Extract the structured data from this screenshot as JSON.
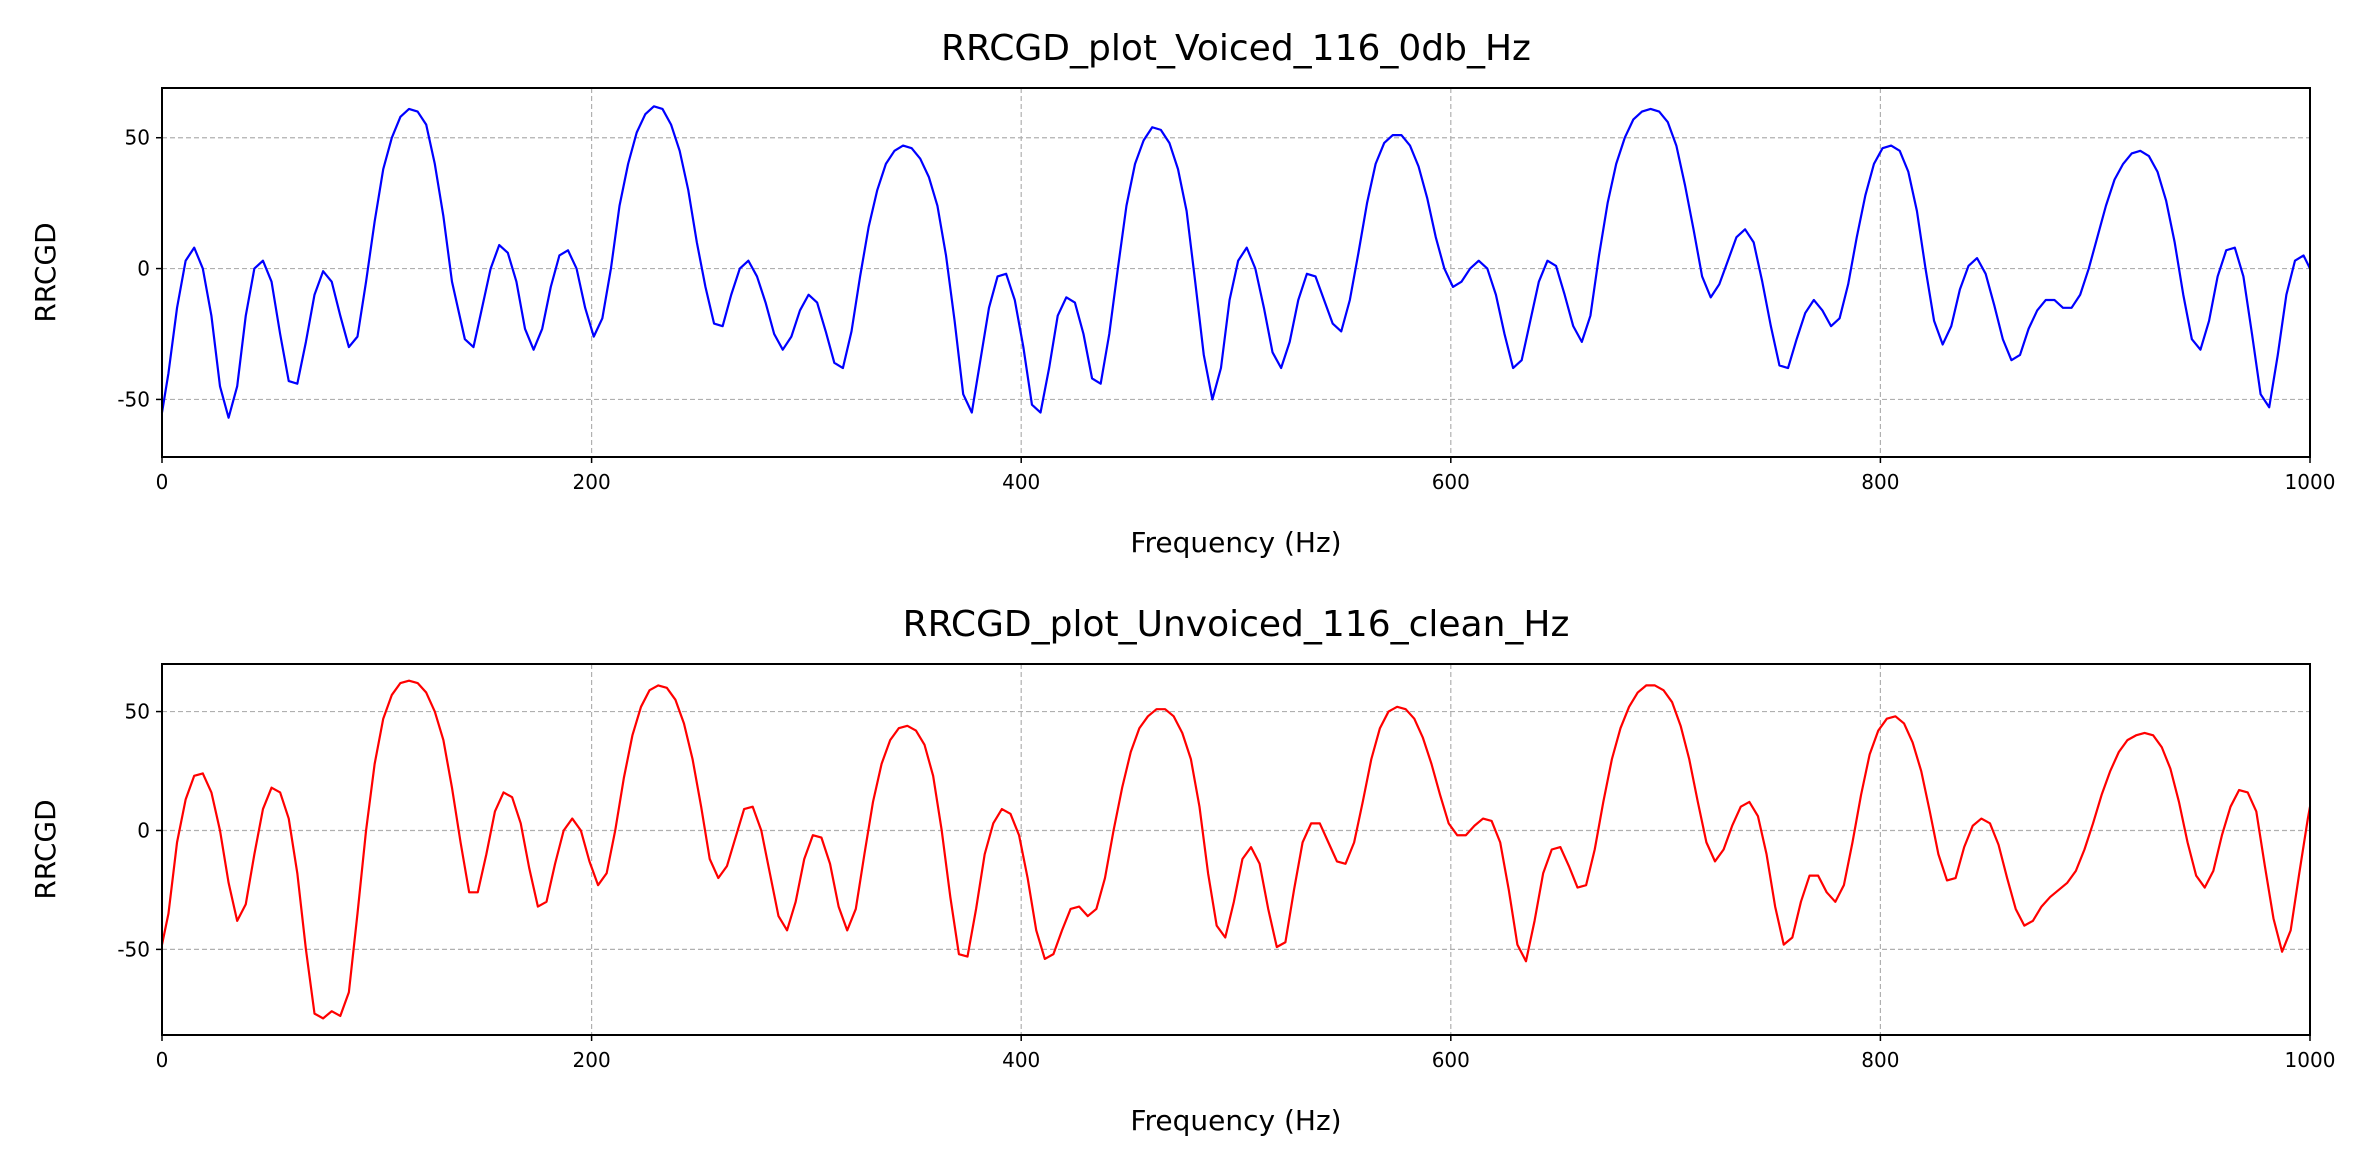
{
  "chart_data": [
    {
      "type": "line",
      "title": "RRCGD_plot_Voiced_116_0db_Hz",
      "xlabel": "Frequency (Hz)",
      "ylabel": "RRCGD",
      "color": "#0000ff",
      "grid": true,
      "xlim": [
        0,
        1000
      ],
      "ylim": [
        -72,
        69
      ],
      "xticks": [
        0,
        200,
        400,
        600,
        800,
        1000
      ],
      "yticks": [
        -50,
        0,
        50
      ],
      "x": [
        0,
        3,
        7,
        11,
        15,
        19,
        23,
        27,
        31,
        35,
        39,
        43,
        47,
        51,
        55,
        59,
        63,
        67,
        71,
        75,
        79,
        83,
        87,
        91,
        95,
        99,
        103,
        107,
        111,
        115,
        119,
        123,
        127,
        131,
        135,
        141,
        145,
        149,
        153,
        157,
        161,
        165,
        169,
        173,
        177,
        181,
        185,
        189,
        193,
        197,
        201,
        205,
        209,
        213,
        217,
        221,
        225,
        229,
        233,
        237,
        241,
        245,
        249,
        253,
        257,
        261,
        265,
        269,
        273,
        277,
        281,
        285,
        289,
        293,
        297,
        301,
        305,
        309,
        313,
        317,
        321,
        325,
        329,
        333,
        337,
        341,
        345,
        349,
        353,
        357,
        361,
        365,
        369,
        373,
        377,
        381,
        385,
        389,
        393,
        397,
        401,
        405,
        409,
        413,
        417,
        421,
        425,
        429,
        433,
        437,
        441,
        445,
        449,
        453,
        457,
        461,
        465,
        469,
        473,
        477,
        481,
        485,
        489,
        493,
        497,
        501,
        505,
        509,
        513,
        517,
        521,
        525,
        529,
        533,
        537,
        541,
        545,
        549,
        553,
        557,
        561,
        565,
        569,
        573,
        577,
        581,
        585,
        589,
        593,
        597,
        601,
        605,
        609,
        613,
        617,
        621,
        625,
        629,
        633,
        637,
        641,
        645,
        649,
        653,
        657,
        661,
        665,
        669,
        673,
        677,
        681,
        685,
        689,
        693,
        697,
        701,
        705,
        709,
        713,
        717,
        721,
        725,
        729,
        733,
        737,
        741,
        745,
        749,
        753,
        757,
        761,
        765,
        769,
        773,
        777,
        781,
        785,
        789,
        793,
        797,
        801,
        805,
        809,
        813,
        817,
        821,
        825,
        829,
        833,
        837,
        841,
        845,
        849,
        853,
        857,
        861,
        865,
        869,
        873,
        877,
        881,
        885,
        889,
        893,
        897,
        901,
        905,
        909,
        913,
        917,
        921,
        925,
        929,
        933,
        937,
        941,
        945,
        949,
        953,
        957,
        961,
        965,
        969,
        973,
        977,
        981,
        985,
        989,
        993,
        997,
        1000
      ],
      "values": [
        -55,
        -40,
        -15,
        3,
        8,
        0,
        -18,
        -45,
        -57,
        -45,
        -18,
        0,
        3,
        -5,
        -25,
        -43,
        -44,
        -28,
        -10,
        -1,
        -5,
        -18,
        -30,
        -26,
        -5,
        18,
        38,
        50,
        58,
        61,
        60,
        55,
        40,
        20,
        -5,
        -27,
        -30,
        -15,
        0,
        9,
        6,
        -5,
        -23,
        -31,
        -23,
        -7,
        5,
        7,
        0,
        -15,
        -26,
        -19,
        0,
        24,
        40,
        52,
        59,
        62,
        61,
        55,
        45,
        30,
        10,
        -7,
        -21,
        -22,
        -10,
        0,
        3,
        -3,
        -13,
        -25,
        -31,
        -26,
        -16,
        -10,
        -13,
        -24,
        -36,
        -38,
        -24,
        -3,
        16,
        30,
        40,
        45,
        47,
        46,
        42,
        35,
        24,
        5,
        -20,
        -48,
        -55,
        -35,
        -15,
        -3,
        -2,
        -12,
        -30,
        -52,
        -55,
        -38,
        -18,
        -11,
        -13,
        -25,
        -42,
        -44,
        -25,
        0,
        24,
        40,
        49,
        54,
        53,
        48,
        38,
        22,
        -5,
        -33,
        -50,
        -38,
        -12,
        3,
        8,
        0,
        -15,
        -32,
        -38,
        -28,
        -12,
        -2,
        -3,
        -12,
        -21,
        -24,
        -12,
        6,
        25,
        40,
        48,
        51,
        51,
        47,
        39,
        27,
        12,
        0,
        -7,
        -5,
        0,
        3,
        0,
        -10,
        -25,
        -38,
        -35,
        -20,
        -5,
        3,
        1,
        -10,
        -22,
        -28,
        -18,
        5,
        25,
        40,
        50,
        57,
        60,
        61,
        60,
        56,
        47,
        32,
        15,
        -3,
        -11,
        -6,
        3,
        12,
        15,
        10,
        -5,
        -22,
        -37,
        -38,
        -27,
        -17,
        -12,
        -16,
        -22,
        -19,
        -6,
        12,
        28,
        40,
        46,
        47,
        45,
        37,
        22,
        0,
        -20,
        -29,
        -22,
        -8,
        1,
        4,
        -2,
        -14,
        -27,
        -35,
        -33,
        -23,
        -16,
        -12,
        -12,
        -15,
        -15,
        -10,
        0,
        12,
        24,
        34,
        40,
        44,
        45,
        43,
        37,
        26,
        10,
        -10,
        -27,
        -31,
        -20,
        -3,
        7,
        8,
        -3,
        -25,
        -48,
        -53,
        -33,
        -10,
        3,
        5,
        0
      ]
    },
    {
      "type": "line",
      "title": "RRCGD_plot_Unvoiced_116_clean_Hz",
      "xlabel": "Frequency (Hz)",
      "ylabel": "RRCGD",
      "color": "#ff0000",
      "grid": true,
      "xlim": [
        0,
        1000
      ],
      "ylim": [
        -86,
        70
      ],
      "xticks": [
        0,
        200,
        400,
        600,
        800,
        1000
      ],
      "yticks": [
        -50,
        0,
        50
      ],
      "x": [
        0,
        3,
        7,
        11,
        15,
        19,
        23,
        27,
        31,
        35,
        39,
        43,
        47,
        51,
        55,
        59,
        63,
        67,
        71,
        75,
        79,
        83,
        87,
        91,
        95,
        99,
        103,
        107,
        111,
        115,
        119,
        123,
        127,
        131,
        135,
        139,
        143,
        147,
        151,
        155,
        159,
        163,
        167,
        171,
        175,
        179,
        183,
        187,
        191,
        195,
        199,
        203,
        207,
        211,
        215,
        219,
        223,
        227,
        231,
        235,
        239,
        243,
        247,
        251,
        255,
        259,
        263,
        267,
        271,
        275,
        279,
        283,
        287,
        291,
        295,
        299,
        303,
        307,
        311,
        315,
        319,
        323,
        327,
        331,
        335,
        339,
        343,
        347,
        351,
        355,
        359,
        363,
        367,
        371,
        375,
        379,
        383,
        387,
        391,
        395,
        399,
        403,
        407,
        411,
        415,
        419,
        423,
        427,
        431,
        435,
        439,
        443,
        447,
        451,
        455,
        459,
        463,
        467,
        471,
        475,
        479,
        483,
        487,
        491,
        495,
        499,
        503,
        507,
        511,
        515,
        519,
        523,
        527,
        531,
        535,
        539,
        543,
        547,
        551,
        555,
        559,
        563,
        567,
        571,
        575,
        579,
        583,
        587,
        591,
        595,
        599,
        603,
        607,
        611,
        615,
        619,
        623,
        627,
        631,
        635,
        639,
        643,
        647,
        651,
        655,
        659,
        663,
        667,
        671,
        675,
        679,
        683,
        687,
        691,
        695,
        699,
        703,
        707,
        711,
        715,
        719,
        723,
        727,
        731,
        735,
        739,
        743,
        747,
        751,
        755,
        759,
        763,
        767,
        771,
        775,
        779,
        783,
        787,
        791,
        795,
        799,
        803,
        807,
        811,
        815,
        819,
        823,
        827,
        831,
        835,
        839,
        843,
        847,
        851,
        855,
        859,
        863,
        867,
        871,
        875,
        879,
        883,
        887,
        891,
        895,
        899,
        903,
        907,
        911,
        915,
        919,
        923,
        927,
        931,
        935,
        939,
        943,
        947,
        951,
        955,
        959,
        963,
        967,
        971,
        975,
        979,
        983,
        987,
        991,
        995,
        999,
        1000
      ],
      "values": [
        -48,
        -35,
        -5,
        13,
        23,
        24,
        16,
        0,
        -22,
        -38,
        -31,
        -10,
        9,
        18,
        16,
        5,
        -18,
        -50,
        -77,
        -79,
        -76,
        -78,
        -68,
        -35,
        0,
        28,
        47,
        57,
        62,
        63,
        62,
        58,
        50,
        38,
        18,
        -5,
        -26,
        -26,
        -10,
        8,
        16,
        14,
        3,
        -16,
        -32,
        -30,
        -14,
        0,
        5,
        0,
        -13,
        -23,
        -18,
        0,
        22,
        40,
        52,
        59,
        61,
        60,
        55,
        45,
        30,
        10,
        -12,
        -20,
        -15,
        -3,
        9,
        10,
        0,
        -18,
        -36,
        -42,
        -30,
        -12,
        -2,
        -3,
        -14,
        -32,
        -42,
        -33,
        -10,
        12,
        28,
        38,
        43,
        44,
        42,
        36,
        23,
        0,
        -28,
        -52,
        -53,
        -33,
        -10,
        3,
        9,
        7,
        -2,
        -20,
        -42,
        -54,
        -52,
        -42,
        -33,
        -32,
        -36,
        -33,
        -20,
        0,
        18,
        33,
        43,
        48,
        51,
        51,
        48,
        41,
        30,
        10,
        -18,
        -40,
        -45,
        -30,
        -12,
        -7,
        -14,
        -33,
        -49,
        -47,
        -25,
        -5,
        3,
        3,
        -5,
        -13,
        -14,
        -5,
        12,
        30,
        43,
        50,
        52,
        51,
        47,
        39,
        28,
        15,
        3,
        -2,
        -2,
        2,
        5,
        4,
        -5,
        -25,
        -48,
        -55,
        -38,
        -18,
        -8,
        -7,
        -15,
        -24,
        -23,
        -8,
        12,
        30,
        43,
        52,
        58,
        61,
        61,
        59,
        54,
        44,
        30,
        12,
        -5,
        -13,
        -8,
        2,
        10,
        12,
        6,
        -10,
        -32,
        -48,
        -45,
        -30,
        -19,
        -19,
        -26,
        -30,
        -23,
        -5,
        15,
        32,
        42,
        47,
        48,
        45,
        37,
        25,
        8,
        -10,
        -21,
        -20,
        -7,
        2,
        5,
        3,
        -6,
        -20,
        -33,
        -40,
        -38,
        -32,
        -28,
        -25,
        -22,
        -17,
        -8,
        3,
        15,
        25,
        33,
        38,
        40,
        41,
        40,
        35,
        26,
        12,
        -5,
        -19,
        -24,
        -17,
        -2,
        10,
        17,
        16,
        8,
        -15,
        -37,
        -51,
        -42,
        -18,
        5,
        10
      ]
    }
  ]
}
